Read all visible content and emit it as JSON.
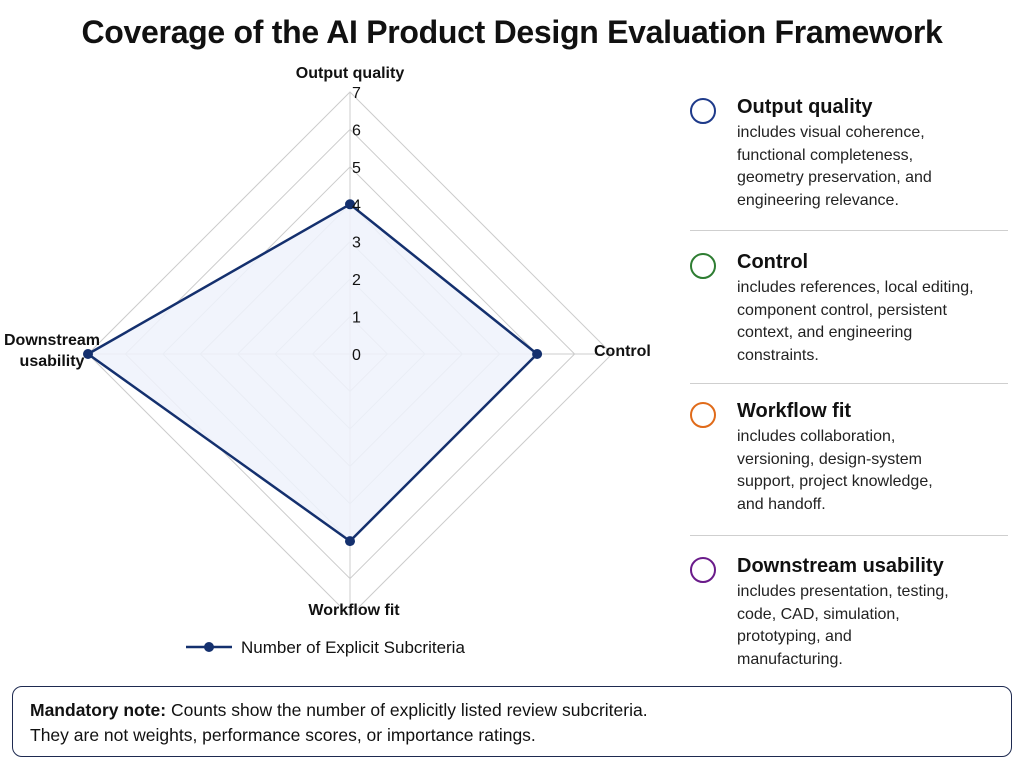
{
  "title": "Coverage of the AI Product Design Evaluation Framework",
  "chart_data": {
    "type": "radar",
    "axes": [
      "Output quality",
      "Control",
      "Workflow fit",
      "Downstream usability"
    ],
    "axis_label_lines": [
      [
        "Output quality"
      ],
      [
        "Control"
      ],
      [
        "Workflow fit"
      ],
      [
        "Downstream",
        "usability"
      ]
    ],
    "range": [
      0,
      7
    ],
    "ticks": [
      "0",
      "1",
      "2",
      "3",
      "4",
      "5",
      "6",
      "7"
    ],
    "grid": true,
    "series": [
      {
        "name": "Number of Explicit Subcriteria",
        "values": [
          4,
          5,
          5,
          7
        ]
      }
    ],
    "legend_position": "bottom"
  },
  "colors": {
    "series_line": "#14306e",
    "series_fill": "#eef2fb",
    "grid": "#cccccc",
    "output_quality": "#1e3a8a",
    "control": "#2e7d32",
    "workflow_fit": "#e06b1a",
    "downstream_usability": "#6a1b8a",
    "note_border": "#1e2a50"
  },
  "categories": [
    {
      "title": "Output quality",
      "lines": [
        "includes visual coherence,",
        "functional completeness,",
        "geometry preservation, and",
        "engineering relevance."
      ]
    },
    {
      "title": "Control",
      "lines": [
        "includes references, local editing,",
        "component control, persistent",
        "context, and engineering",
        "constraints."
      ]
    },
    {
      "title": "Workflow fit",
      "lines": [
        "includes collaboration,",
        "versioning, design-system",
        "support, project knowledge,",
        "and handoff."
      ]
    },
    {
      "title": "Downstream usability",
      "lines": [
        "includes presentation, testing,",
        "code, CAD, simulation,",
        "prototyping, and",
        "manufacturing."
      ]
    }
  ],
  "note": {
    "lead": "Mandatory note:",
    "line1": " Counts show the number of explicitly listed review subcriteria.",
    "line2": "They are not weights, performance scores, or importance ratings."
  }
}
